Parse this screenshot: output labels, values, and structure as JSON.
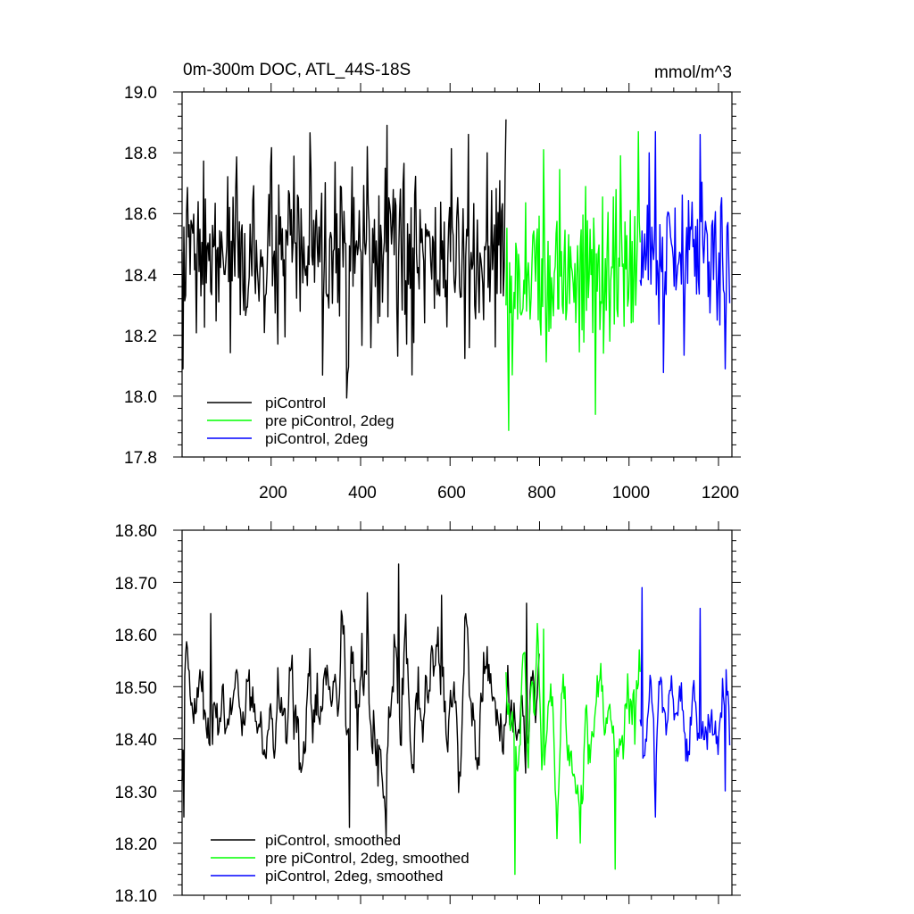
{
  "chart_data": [
    {
      "type": "line",
      "title": "0m-300m DOC, ATL_44S-18S",
      "units": "mmol/m^3",
      "xlabel": "",
      "ylabel": "",
      "xlim": [
        1,
        1230
      ],
      "ylim": [
        17.8,
        19.0
      ],
      "x_ticks": [
        200,
        400,
        600,
        800,
        1000,
        1200
      ],
      "y_ticks": [
        17.8,
        18.0,
        18.2,
        18.4,
        18.6,
        18.8,
        19.0
      ],
      "y_tick_labels": [
        "17.8",
        "18.0",
        "18.2",
        "18.4",
        "18.6",
        "18.8",
        "19.0"
      ],
      "legend_position": "bottom-left",
      "grid": false,
      "series": [
        {
          "name": "piControl",
          "color": "#000000",
          "x_start": 1,
          "x_end": 725,
          "mean": 18.45,
          "std": 0.14,
          "peaks": [
            [
              460,
              18.89
            ],
            [
              815,
              18.91
            ],
            [
              415,
              18.82
            ],
            [
              515,
              18.07
            ],
            [
              3,
              18.09
            ]
          ]
        },
        {
          "name": "pre piControl, 2deg",
          "color": "#00ff00",
          "x_start": 725,
          "x_end": 1025,
          "mean": 18.41,
          "std": 0.15,
          "peaks": [
            [
              810,
              18.81
            ],
            [
              925,
              17.94
            ],
            [
              740,
              18.07
            ],
            [
              982,
              18.79
            ]
          ]
        },
        {
          "name": "piControl, 2deg",
          "color": "#0000ff",
          "x_start": 1025,
          "x_end": 1225,
          "mean": 18.46,
          "std": 0.14,
          "peaks": [
            [
              1160,
              18.86
            ],
            [
              1215,
              18.09
            ],
            [
              1045,
              18.8
            ]
          ]
        }
      ]
    },
    {
      "type": "line",
      "title": "",
      "xlabel": "",
      "ylabel": "",
      "xlim": [
        1,
        1230
      ],
      "ylim": [
        18.1,
        18.8
      ],
      "x_ticks": [
        200,
        400,
        600,
        800,
        1000,
        1200
      ],
      "y_ticks": [
        18.1,
        18.2,
        18.3,
        18.4,
        18.5,
        18.6,
        18.7,
        18.8
      ],
      "y_tick_labels": [
        "18.10",
        "18.20",
        "18.30",
        "18.40",
        "18.50",
        "18.60",
        "18.70",
        "18.80"
      ],
      "legend_position": "bottom-left",
      "grid": false,
      "series": [
        {
          "name": "piControl, smoothed",
          "color": "#000000",
          "x_start": 1,
          "x_end": 800,
          "mean": 18.46,
          "std": 0.09,
          "peaks": [
            [
              485,
              18.735
            ],
            [
              415,
              18.68
            ],
            [
              65,
              18.64
            ],
            [
              582,
              18.675
            ],
            [
              772,
              18.66
            ],
            [
              5,
              18.25
            ],
            [
              375,
              18.23
            ],
            [
              458,
              18.21
            ]
          ]
        },
        {
          "name": "pre piControl, 2deg, smoothed",
          "color": "#00ff00",
          "x_start": 725,
          "x_end": 1025,
          "mean": 18.44,
          "std": 0.08,
          "peaks": [
            [
              810,
              18.61
            ],
            [
              745,
              18.14
            ],
            [
              970,
              18.15
            ],
            [
              892,
              18.2
            ]
          ]
        },
        {
          "name": "piControl, 2deg, smoothed",
          "color": "#0000ff",
          "x_start": 1025,
          "x_end": 1225,
          "mean": 18.46,
          "std": 0.08,
          "peaks": [
            [
              1030,
              18.69
            ],
            [
              1160,
              18.65
            ],
            [
              1060,
              18.25
            ],
            [
              1215,
              18.3
            ]
          ]
        }
      ]
    }
  ]
}
